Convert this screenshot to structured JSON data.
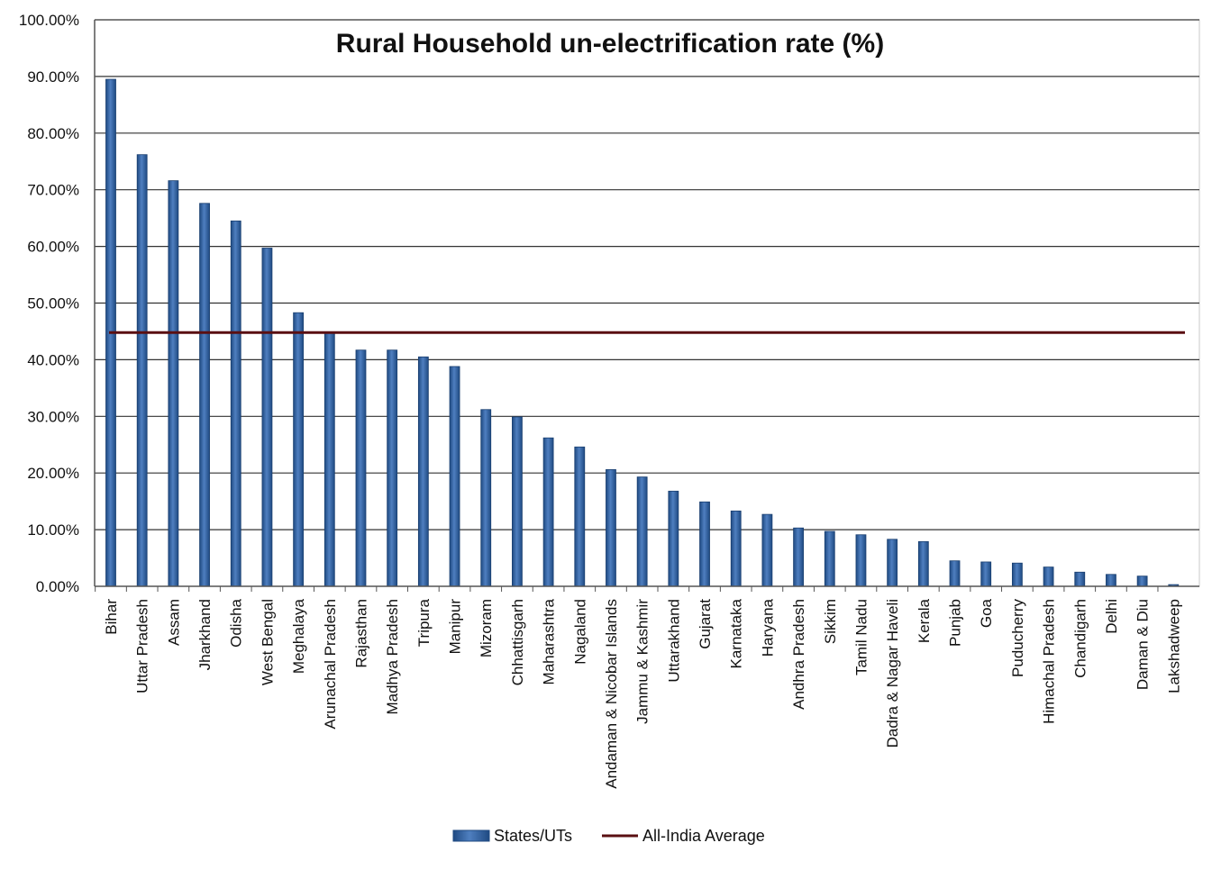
{
  "chart_data": {
    "type": "bar",
    "title": "Rural Household un-electrification rate (%)",
    "xlabel": "",
    "ylabel": "",
    "ylim": [
      0,
      100
    ],
    "yticks": [
      "0.00%",
      "10.00%",
      "20.00%",
      "30.00%",
      "40.00%",
      "50.00%",
      "60.00%",
      "70.00%",
      "80.00%",
      "90.00%",
      "100.00%"
    ],
    "grid": true,
    "legend_position": "bottom",
    "categories": [
      "Bihar",
      "Uttar Pradesh",
      "Assam",
      "Jharkhand",
      "Odisha",
      "West Bengal",
      "Meghalaya",
      "Arunachal Pradesh",
      "Rajasthan",
      "Madhya Pradesh",
      "Tripura",
      "Manipur",
      "Mizoram",
      "Chhattisgarh",
      "Maharashtra",
      "Nagaland",
      "Andaman & Nicobar Islands",
      "Jammu & Kashmir",
      "Uttarakhand",
      "Gujarat",
      "Karnataka",
      "Haryana",
      "Andhra Pradesh",
      "Sikkim",
      "Tamil Nadu",
      "Dadra & Nagar Haveli",
      "Kerala",
      "Punjab",
      "Goa",
      "Puducherry",
      "Himachal Pradesh",
      "Chandigarh",
      "Delhi",
      "Daman & Diu",
      "Lakshadweep"
    ],
    "series": [
      {
        "name": "States/UTs",
        "type": "bar",
        "color": "#2e5f9e",
        "values": [
          89.5,
          76.2,
          71.6,
          67.6,
          64.5,
          59.7,
          48.3,
          44.9,
          41.7,
          41.7,
          40.5,
          38.8,
          31.2,
          29.9,
          26.2,
          24.6,
          20.6,
          19.3,
          16.8,
          14.9,
          13.3,
          12.7,
          10.3,
          9.7,
          9.1,
          8.3,
          7.9,
          4.5,
          4.3,
          4.1,
          3.4,
          2.5,
          2.1,
          1.8,
          0.3
        ]
      },
      {
        "name": "All-India Average",
        "type": "line",
        "color": "#5a0f12",
        "value": 44.8
      }
    ]
  }
}
